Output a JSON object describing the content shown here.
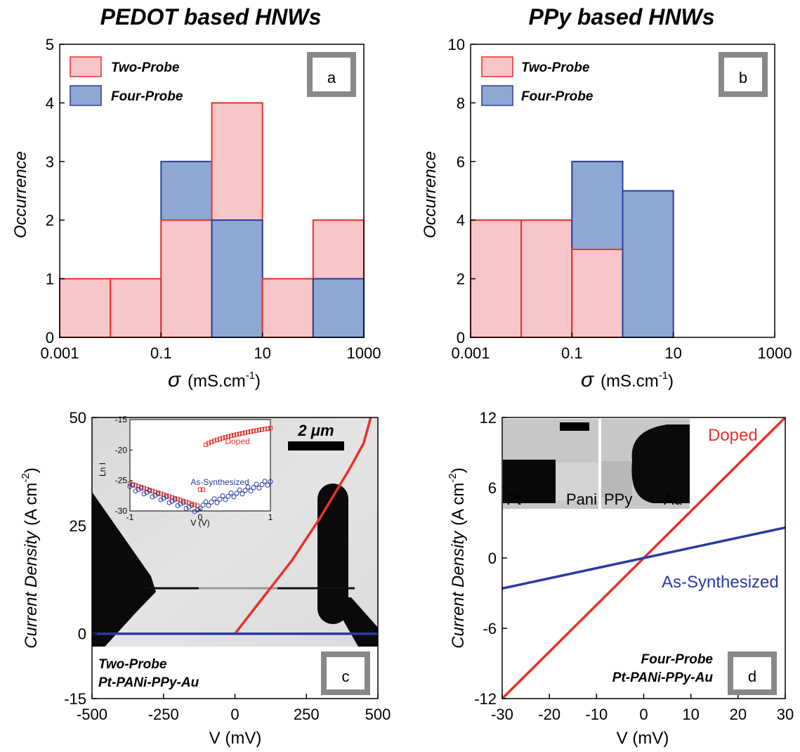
{
  "panel_titles": {
    "left": "PEDOT based HNWs",
    "right": "PPy based HNWs"
  },
  "chart_data": [
    {
      "panel": "a",
      "type": "bar",
      "subtype": "histogram",
      "xscale": "log",
      "xlim": [
        0.001,
        1000
      ],
      "ylim": [
        0,
        5
      ],
      "xticks": [
        "0.001",
        "0.1",
        "10",
        "1000"
      ],
      "yticks": [
        "0",
        "1",
        "2",
        "3",
        "4",
        "5"
      ],
      "xlabel": "σ (mS.cm⁻¹)",
      "xlabel_symbol": "σ",
      "xlabel_unit": "(mS.cm",
      "xlabel_exp": "-1",
      "xlabel_close": ")",
      "ylabel": "Occurrence",
      "legend": {
        "position": "top-left",
        "entries": [
          "Two-Probe",
          "Four-Probe"
        ]
      },
      "bin_edges": [
        0.001,
        0.01,
        0.1,
        1,
        10,
        100,
        1000
      ],
      "series": [
        {
          "name": "Two-Probe",
          "color": "#f7c6c8",
          "edge": "#e8312a",
          "values": [
            1,
            1,
            2,
            4,
            1,
            2
          ]
        },
        {
          "name": "Four-Probe",
          "color": "#8fa8d3",
          "edge": "#2a3b9e",
          "values": [
            0,
            0,
            3,
            2,
            0,
            1
          ]
        }
      ]
    },
    {
      "panel": "b",
      "type": "bar",
      "subtype": "histogram",
      "xscale": "log",
      "xlim": [
        0.001,
        1000
      ],
      "ylim": [
        0,
        10
      ],
      "xticks": [
        "0.001",
        "0.1",
        "10",
        "1000"
      ],
      "yticks": [
        "0",
        "2",
        "4",
        "6",
        "8",
        "10"
      ],
      "xlabel": "σ (mS.cm⁻¹)",
      "xlabel_symbol": "σ",
      "xlabel_unit": "(mS.cm",
      "xlabel_exp": "-1",
      "xlabel_close": ")",
      "ylabel": "Occurrence",
      "legend": {
        "position": "top-left",
        "entries": [
          "Two-Probe",
          "Four-Probe"
        ]
      },
      "bin_edges": [
        0.001,
        0.01,
        0.1,
        1,
        10,
        100,
        1000
      ],
      "series": [
        {
          "name": "Two-Probe",
          "color": "#f7c6c8",
          "edge": "#e8312a",
          "values": [
            4,
            4,
            3,
            0,
            0,
            0
          ]
        },
        {
          "name": "Four-Probe",
          "color": "#8fa8d3",
          "edge": "#2a3b9e",
          "values": [
            0,
            0,
            6,
            5,
            0,
            0
          ]
        }
      ]
    },
    {
      "panel": "c",
      "type": "line",
      "xlim": [
        -500,
        500
      ],
      "ylim": [
        -15,
        50
      ],
      "xticks": [
        "-500",
        "-250",
        "0",
        "250",
        "500"
      ],
      "yticks": [
        "-15",
        "0",
        "25",
        "50"
      ],
      "xlabel": "V (mV)",
      "ylabel": "Current Density (A cm⁻²)",
      "ylabel_main": "Current Density",
      "ylabel_unit": "(A cm",
      "ylabel_exp": "-2",
      "ylabel_close": ")",
      "scale_bar": "2 μm",
      "annotation_lines": [
        "Two-Probe",
        "Pt-PANi-PPy-Au"
      ],
      "series": [
        {
          "name": "Doped",
          "color": "#e8312a",
          "x": [
            -500,
            0,
            100,
            200,
            300,
            400,
            450,
            475
          ],
          "y": [
            0,
            0,
            8.5,
            17,
            27,
            38,
            44,
            50
          ]
        },
        {
          "name": "As-Synthesized",
          "color": "#2a3b9e",
          "x": [
            -500,
            500
          ],
          "y": [
            0,
            0
          ]
        }
      ],
      "inset": {
        "xlabel": "V (V)",
        "ylabel": "Ln I",
        "xlim": [
          -1,
          1
        ],
        "ylim": [
          -30,
          -15
        ],
        "xticks": [
          "-1",
          "0",
          "1"
        ],
        "yticks": [
          "-15",
          "-20",
          "-25",
          "-30"
        ],
        "series": [
          {
            "name": "Doped",
            "color": "#e8312a"
          },
          {
            "name": "As-Synthesized",
            "color": "#2a3b9e"
          }
        ]
      }
    },
    {
      "panel": "d",
      "type": "line",
      "xlim": [
        -30,
        30
      ],
      "ylim": [
        -12,
        12
      ],
      "xticks": [
        "-30",
        "-20",
        "-10",
        "0",
        "10",
        "20",
        "30"
      ],
      "yticks": [
        "12",
        "6",
        "0",
        "-6",
        "-12"
      ],
      "xlabel": "V (mV)",
      "ylabel": "Current Density (A cm⁻²)",
      "ylabel_main": "Current Density",
      "ylabel_unit": "(A cm",
      "ylabel_exp": "-2",
      "ylabel_close": ")",
      "annotation_lines": [
        "Four-Probe",
        "Pt-PANi-PPy-Au"
      ],
      "inset_labels": [
        "Pt",
        "Pani",
        "PPy",
        "Au"
      ],
      "series": [
        {
          "name": "Doped",
          "color": "#e8312a",
          "x": [
            -30,
            30
          ],
          "y": [
            -12,
            12
          ]
        },
        {
          "name": "As-Synthesized",
          "color": "#2a3b9e",
          "x": [
            -30,
            30
          ],
          "y": [
            -2.6,
            2.6
          ]
        }
      ]
    }
  ]
}
